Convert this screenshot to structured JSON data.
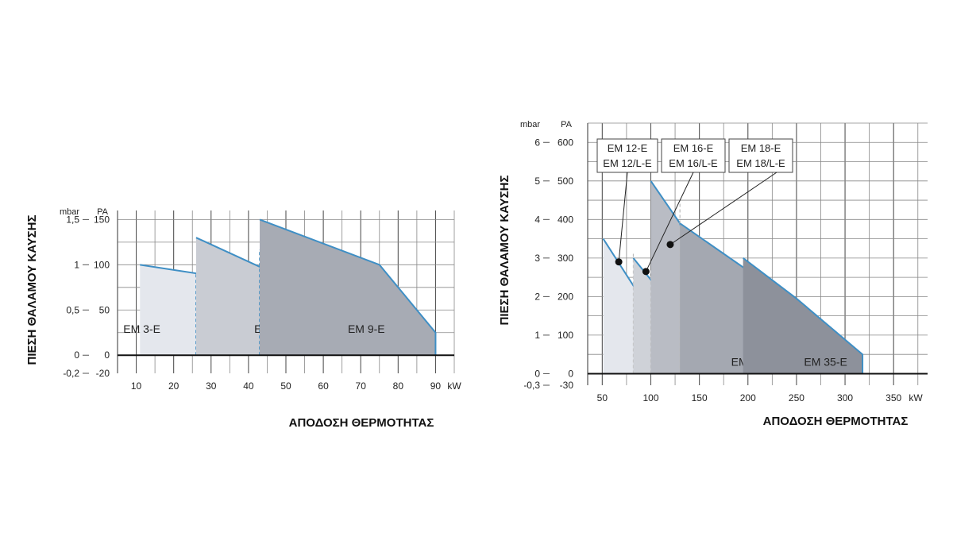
{
  "chart_data": [
    {
      "type": "area",
      "xlabel": "ΑΠΟΔΟΣΗ ΘΕΡΜΟΤΗΤΑΣ",
      "ylabel": "ΠΙΕΣΗ ΘΑΛΑΜΟΥ ΚΑΥΣΗΣ",
      "x_unit": "kW",
      "y_unit_left": "mbar",
      "y_unit_right": "PA",
      "xlim": [
        5,
        95
      ],
      "ylim_pa": [
        -20,
        160
      ],
      "x_ticks": [
        "10",
        "20",
        "30",
        "40",
        "50",
        "60",
        "70",
        "80",
        "90"
      ],
      "y_ticks_mbar": [
        {
          "label": "1,5",
          "pa": 150
        },
        {
          "label": "1",
          "pa": 100
        },
        {
          "label": "0,5",
          "pa": 50
        },
        {
          "label": "0",
          "pa": 0
        },
        {
          "label": "-0,2",
          "pa": -20
        }
      ],
      "y_ticks_pa": [
        {
          "label": "150",
          "pa": 150
        },
        {
          "label": "100",
          "pa": 100
        },
        {
          "label": "50",
          "pa": 50
        },
        {
          "label": "0",
          "pa": 0
        },
        {
          "label": "-20",
          "pa": -20
        }
      ],
      "series": [
        {
          "name": "EM 3-E",
          "color": "#e4e7ed",
          "label_at": [
            11.5,
            25
          ],
          "points": [
            [
              11,
              0
            ],
            [
              11,
              100
            ],
            [
              30,
              88
            ],
            [
              38,
              0
            ]
          ],
          "dashed_x": 26
        },
        {
          "name": "EM 6-E",
          "color": "#c9ccd3",
          "label_at": [
            46.5,
            25
          ],
          "points": [
            [
              26,
              0
            ],
            [
              26,
              130
            ],
            [
              55,
              75
            ],
            [
              68,
              25
            ],
            [
              68,
              0
            ]
          ],
          "dashed_x": 43
        },
        {
          "name": "EM 9-E",
          "color": "#a7abb4",
          "label_at": [
            71.5,
            25
          ],
          "points": [
            [
              43,
              0
            ],
            [
              43,
              150
            ],
            [
              75,
              100
            ],
            [
              90,
              25
            ],
            [
              90,
              0
            ]
          ]
        }
      ]
    },
    {
      "type": "area",
      "xlabel": "ΑΠΟΔΟΣΗ ΘΕΡΜΟΤΗΤΑΣ",
      "ylabel": "ΠΙΕΣΗ ΘΑΛΑΜΟΥ ΚΑΥΣΗΣ",
      "x_unit": "kW",
      "y_unit_left": "mbar",
      "y_unit_right": "PA",
      "xlim": [
        35,
        385
      ],
      "ylim_pa": [
        -30,
        650
      ],
      "x_ticks": [
        "50",
        "100",
        "150",
        "200",
        "250",
        "300",
        "350"
      ],
      "y_ticks_mbar": [
        {
          "label": "6",
          "pa": 600
        },
        {
          "label": "5",
          "pa": 500
        },
        {
          "label": "4",
          "pa": 400
        },
        {
          "label": "3",
          "pa": 300
        },
        {
          "label": "2",
          "pa": 200
        },
        {
          "label": "1",
          "pa": 100
        },
        {
          "label": "0",
          "pa": 0
        },
        {
          "label": "-0,3",
          "pa": -30
        }
      ],
      "y_ticks_pa": [
        {
          "label": "600",
          "pa": 600
        },
        {
          "label": "500",
          "pa": 500
        },
        {
          "label": "400",
          "pa": 400
        },
        {
          "label": "300",
          "pa": 300
        },
        {
          "label": "200",
          "pa": 200
        },
        {
          "label": "100",
          "pa": 100
        },
        {
          "label": "0",
          "pa": 0
        },
        {
          "label": "-30",
          "pa": -30
        }
      ],
      "series": [
        {
          "name": "EM 12-E / EM 12/L-E",
          "color": "#e4e7ed",
          "points": [
            [
              51,
              0
            ],
            [
              51,
              350
            ],
            [
              88,
              205
            ],
            [
              118,
              0
            ]
          ],
          "dashed_x": 82
        },
        {
          "name": "EM 16-E / EM 16/L-E",
          "color": "#cfd2d8",
          "points": [
            [
              82,
              0
            ],
            [
              82,
              300
            ],
            [
              130,
              150
            ],
            [
              153,
              0
            ]
          ],
          "dashed_x": 100
        },
        {
          "name": "EM 18-E / EM 18/L-E",
          "color": "#b9bcc4",
          "points": [
            [
              100,
              0
            ],
            [
              100,
              500
            ],
            [
              130,
              390
            ],
            [
              170,
              0
            ]
          ],
          "dashed_x": 130
        },
        {
          "name": "EM 26-E",
          "color": "#a4a8b1",
          "label_at": [
            205,
            20
          ],
          "points": [
            [
              130,
              0
            ],
            [
              130,
              390
            ],
            [
              210,
              250
            ],
            [
              245,
              0
            ]
          ]
        },
        {
          "name": "EM 35-E",
          "color": "#8d919b",
          "label_at": [
            280,
            20
          ],
          "points": [
            [
              195,
              0
            ],
            [
              195,
              300
            ],
            [
              250,
              195
            ],
            [
              318,
              50
            ],
            [
              318,
              0
            ]
          ]
        }
      ],
      "legend": [
        {
          "line1": "EM 12-E",
          "line2": "EM 12/L-E",
          "dot": [
            67,
            290
          ]
        },
        {
          "line1": "EM 16-E",
          "line2": "EM 16/L-E",
          "dot": [
            95,
            265
          ]
        },
        {
          "line1": "EM 18-E",
          "line2": "EM 18/L-E",
          "dot": [
            120,
            335
          ]
        }
      ]
    }
  ]
}
